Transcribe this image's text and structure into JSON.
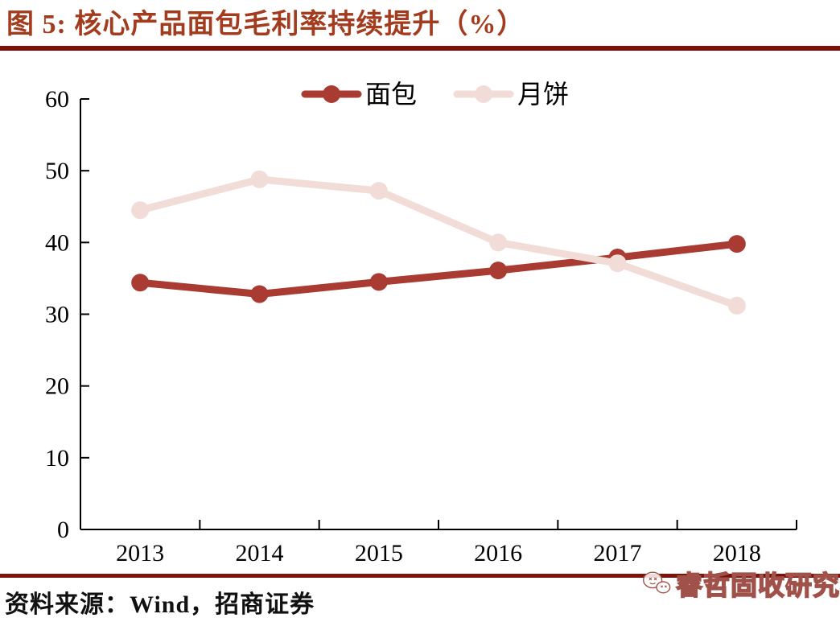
{
  "theme": {
    "title_color": "#A33C1E",
    "rule_color": "#7E120B",
    "axis_color": "#000000",
    "watermark_outline": "#A0524A"
  },
  "header": {
    "figure_label": "图 5:",
    "title": "图 5:  核心产品面包毛利率持续提升（%）"
  },
  "footer": {
    "source_label": "资料来源：Wind，招商证券"
  },
  "watermark": {
    "icon": "wechat-icon",
    "text": "睿哲固收研究"
  },
  "chart_data": {
    "type": "line",
    "title": "核心产品面包毛利率持续提升（%）",
    "categories": [
      "2013",
      "2014",
      "2015",
      "2016",
      "2017",
      "2018"
    ],
    "series": [
      {
        "name": "面包",
        "color": "#A93B33",
        "values": [
          34.4,
          32.8,
          34.5,
          36.1,
          37.9,
          39.8
        ]
      },
      {
        "name": "月饼",
        "color": "#F2DCD8",
        "values": [
          44.5,
          48.8,
          47.2,
          40.0,
          37.1,
          31.2
        ]
      }
    ],
    "xlabel": "",
    "ylabel": "",
    "ylim": [
      0,
      60
    ],
    "ytick_step": 10,
    "yticks": [
      "0",
      "10",
      "20",
      "30",
      "40",
      "50",
      "60"
    ],
    "grid": false,
    "legend_position": "top",
    "marker": "circle",
    "line_width": 9,
    "marker_radius": 11
  }
}
